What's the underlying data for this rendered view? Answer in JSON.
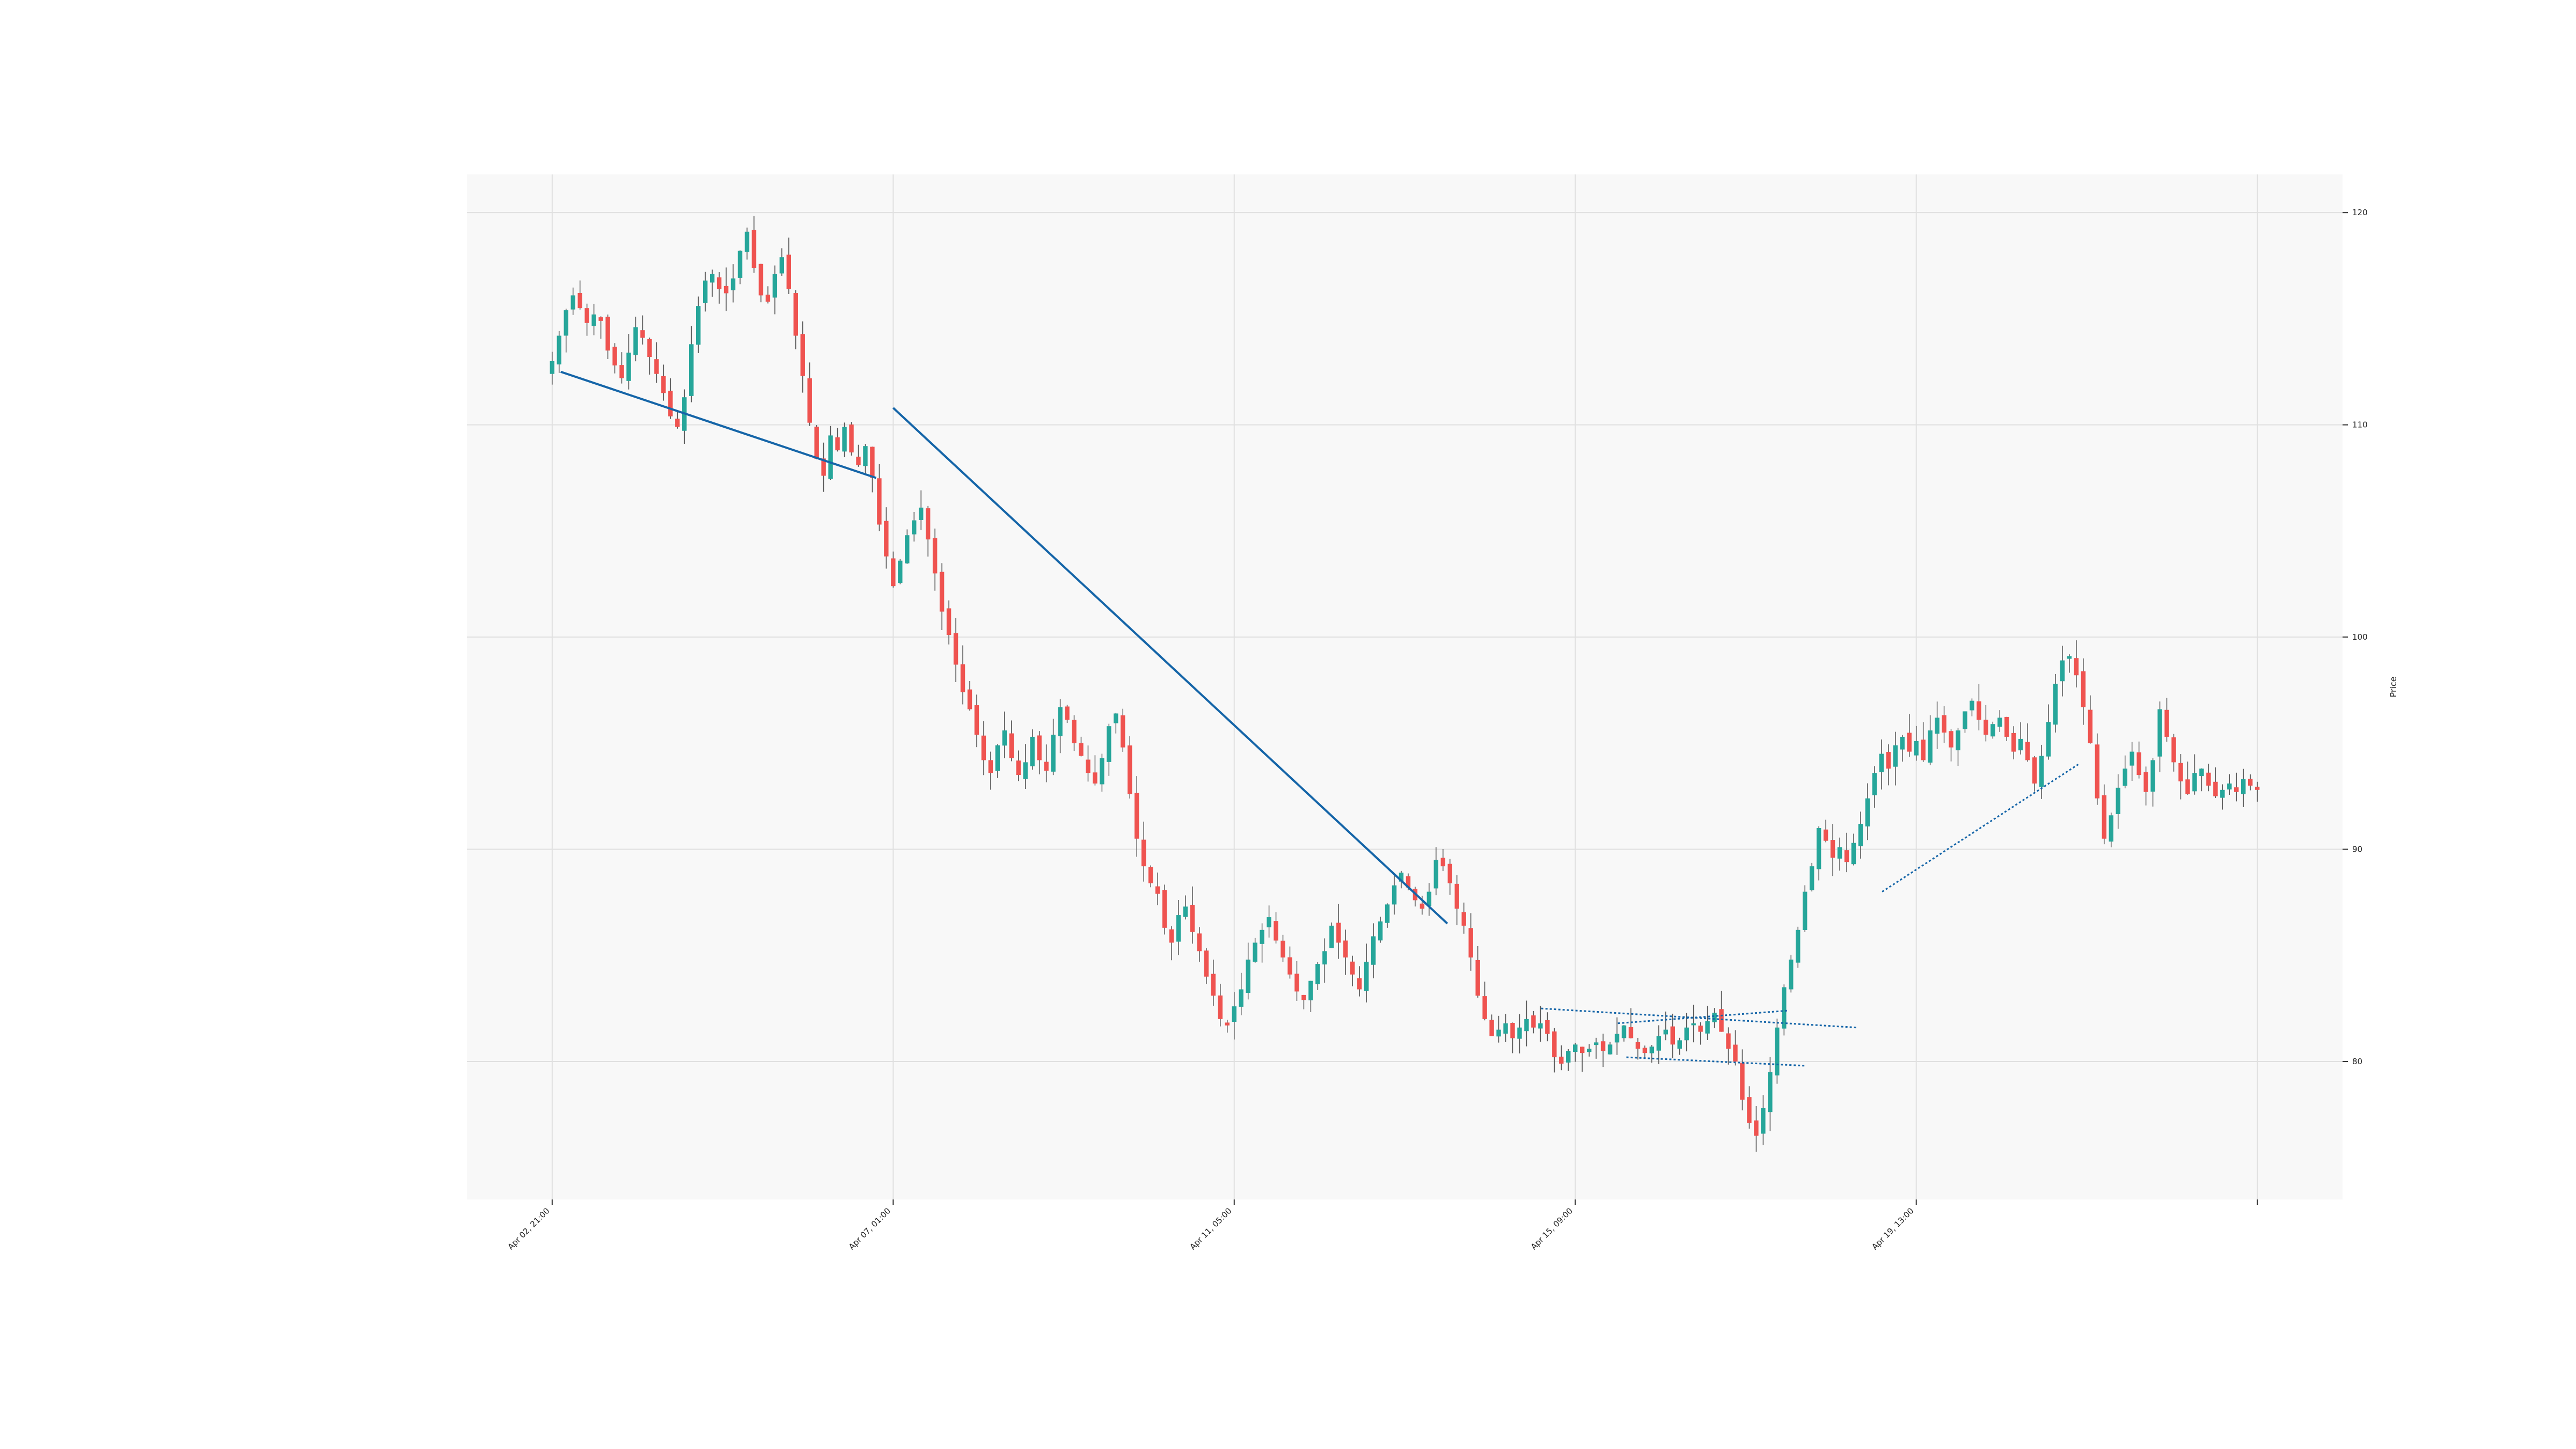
{
  "chart_data": {
    "type": "candlestick",
    "title": "",
    "ylabel": "Price",
    "xlabel": "",
    "ylim": [
      73.5,
      121.8
    ],
    "xlim": [
      -10,
      210
    ],
    "y_ticks": [
      80,
      90,
      100,
      110,
      120
    ],
    "x_ticks": [
      {
        "x": 0,
        "label": "Apr 02, 21:00"
      },
      {
        "x": 40,
        "label": "Apr 07, 01:00"
      },
      {
        "x": 80,
        "label": "Apr 11, 05:00"
      },
      {
        "x": 120,
        "label": "Apr 15, 09:00"
      },
      {
        "x": 160,
        "label": "Apr 19, 13:00"
      },
      {
        "x": 200,
        "label": ""
      }
    ],
    "grid": true,
    "colors": {
      "up": "#26a69a",
      "down": "#ef5350",
      "wick": "#555555",
      "trendline": "#1565a8",
      "grid": "#e0e0e0",
      "plot_bg": "#f8f8f8"
    },
    "candles_close": [
      113.0,
      114.2,
      115.4,
      116.1,
      115.5,
      114.8,
      115.2,
      114.9,
      113.5,
      112.8,
      112.2,
      113.4,
      114.6,
      114.1,
      113.2,
      112.4,
      111.5,
      110.4,
      109.9,
      111.3,
      113.8,
      115.6,
      116.8,
      117.1,
      116.4,
      116.2,
      116.9,
      118.2,
      119.1,
      117.4,
      116.1,
      115.8,
      117.1,
      117.9,
      116.4,
      114.2,
      112.3,
      110.1,
      108.4,
      107.6,
      109.5,
      108.8,
      109.9,
      108.7,
      108.1,
      109.0,
      107.5,
      105.3,
      103.8,
      102.4,
      103.6,
      104.8,
      105.5,
      106.1,
      104.6,
      103.0,
      101.2,
      100.1,
      98.7,
      97.4,
      96.6,
      95.4,
      94.2,
      93.6,
      94.9,
      95.6,
      94.3,
      93.5,
      94.1,
      95.3,
      94.2,
      93.7,
      95.4,
      96.7,
      96.1,
      95.0,
      94.4,
      93.6,
      93.1,
      94.3,
      95.8,
      96.4,
      94.8,
      92.6,
      90.5,
      89.2,
      88.4,
      87.9,
      86.3,
      85.6,
      86.9,
      87.3,
      86.1,
      85.2,
      84.0,
      83.1,
      82.0,
      81.7,
      82.6,
      83.4,
      84.8,
      85.6,
      86.2,
      86.8,
      85.7,
      84.9,
      84.1,
      83.3,
      82.9,
      83.8,
      84.6,
      85.2,
      86.4,
      85.6,
      84.9,
      84.1,
      83.4,
      84.7,
      85.9,
      86.6,
      87.4,
      88.3,
      88.9,
      88.2,
      87.6,
      87.2,
      88.0,
      89.5,
      89.2,
      88.4,
      87.2,
      86.4,
      84.9,
      83.1,
      82.0,
      81.2,
      81.5,
      81.8,
      81.1,
      81.6,
      82.0,
      81.6,
      81.8,
      81.3,
      80.2,
      79.9,
      80.5,
      80.8,
      80.4,
      80.6,
      80.9,
      80.5,
      80.8,
      81.3,
      81.7,
      81.1,
      80.6,
      80.4,
      80.7,
      81.2,
      81.5,
      80.8,
      81.0,
      81.6,
      81.8,
      81.4,
      81.9,
      82.3,
      81.4,
      80.6,
      80.0,
      78.2,
      77.1,
      76.5,
      77.8,
      79.5,
      81.6,
      83.5,
      84.8,
      86.2,
      88.0,
      89.2,
      91.0,
      90.4,
      89.6,
      90.1,
      89.4,
      90.3,
      91.2,
      92.4,
      93.6,
      94.5,
      93.8,
      94.9,
      95.3,
      94.6,
      95.1,
      94.2,
      95.6,
      96.2,
      95.5,
      94.8,
      95.6,
      96.5,
      97.0,
      96.1,
      95.4,
      95.9,
      96.2,
      95.3,
      94.6,
      95.2,
      94.2,
      93.1,
      94.4,
      96.0,
      97.8,
      98.9,
      99.1,
      98.2,
      96.7,
      95.0,
      92.4,
      90.5,
      91.6,
      92.9,
      93.8,
      94.6,
      93.5,
      92.7,
      94.2,
      96.6,
      95.3,
      94.1,
      93.2,
      92.6,
      93.6,
      93.8,
      93.0,
      92.5,
      92.8,
      93.1,
      92.7,
      93.3,
      93.0,
      92.8
    ],
    "trendlines": [
      {
        "style": "solid",
        "points": [
          [
            1,
            112.5
          ],
          [
            38,
            107.5
          ]
        ]
      },
      {
        "style": "solid",
        "points": [
          [
            40,
            110.8
          ],
          [
            105,
            86.5
          ]
        ]
      },
      {
        "style": "dotted",
        "points": [
          [
            116,
            82.5
          ],
          [
            153,
            81.6
          ]
        ]
      },
      {
        "style": "dotted",
        "points": [
          [
            126,
            80.2
          ],
          [
            147,
            79.8
          ]
        ]
      },
      {
        "style": "dotted",
        "points": [
          [
            125,
            81.8
          ],
          [
            145,
            82.4
          ]
        ]
      },
      {
        "style": "dotted",
        "points": [
          [
            156,
            88.0
          ],
          [
            179,
            94.0
          ]
        ]
      }
    ]
  }
}
